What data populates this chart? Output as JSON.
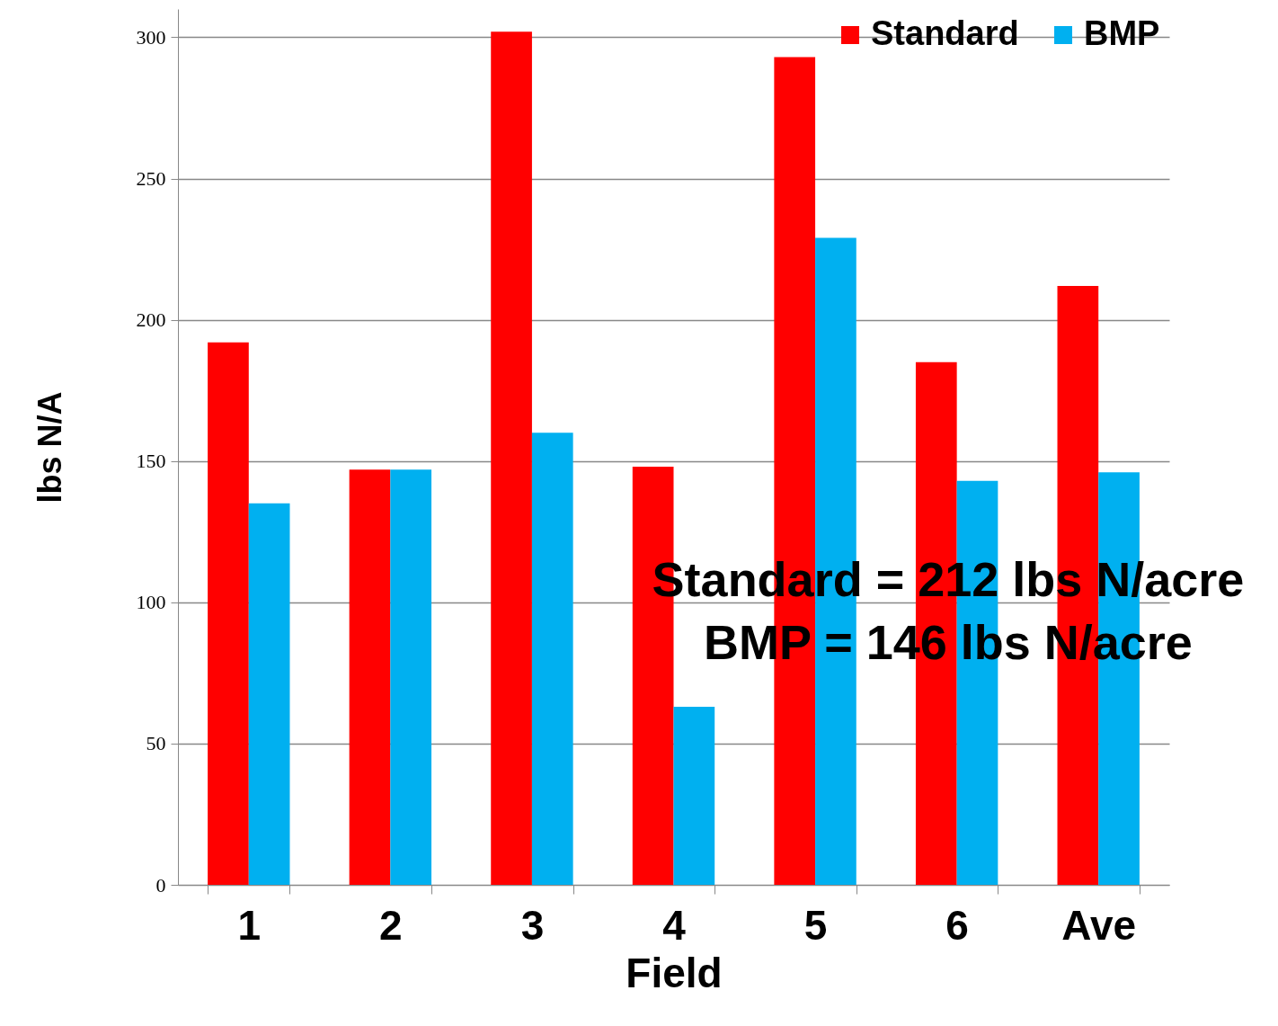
{
  "chart_data": {
    "type": "bar",
    "xlabel": "Field",
    "ylabel": "lbs N/A",
    "categories": [
      "1",
      "2",
      "3",
      "4",
      "5",
      "6",
      "Ave"
    ],
    "series": [
      {
        "name": "Standard",
        "color": "#ff0000",
        "values": [
          192,
          147,
          302,
          148,
          293,
          185,
          212
        ]
      },
      {
        "name": "BMP",
        "color": "#00b0f0",
        "values": [
          135,
          147,
          160,
          63,
          229,
          143,
          146
        ]
      }
    ],
    "ylim": [
      0,
      310
    ],
    "yticks": [
      0,
      50,
      100,
      150,
      200,
      250,
      300
    ],
    "grid": "y",
    "legend": "top right",
    "annotations": [
      "Standard = 212 lbs N/acre",
      "BMP      = 146 lbs N/acre"
    ]
  }
}
